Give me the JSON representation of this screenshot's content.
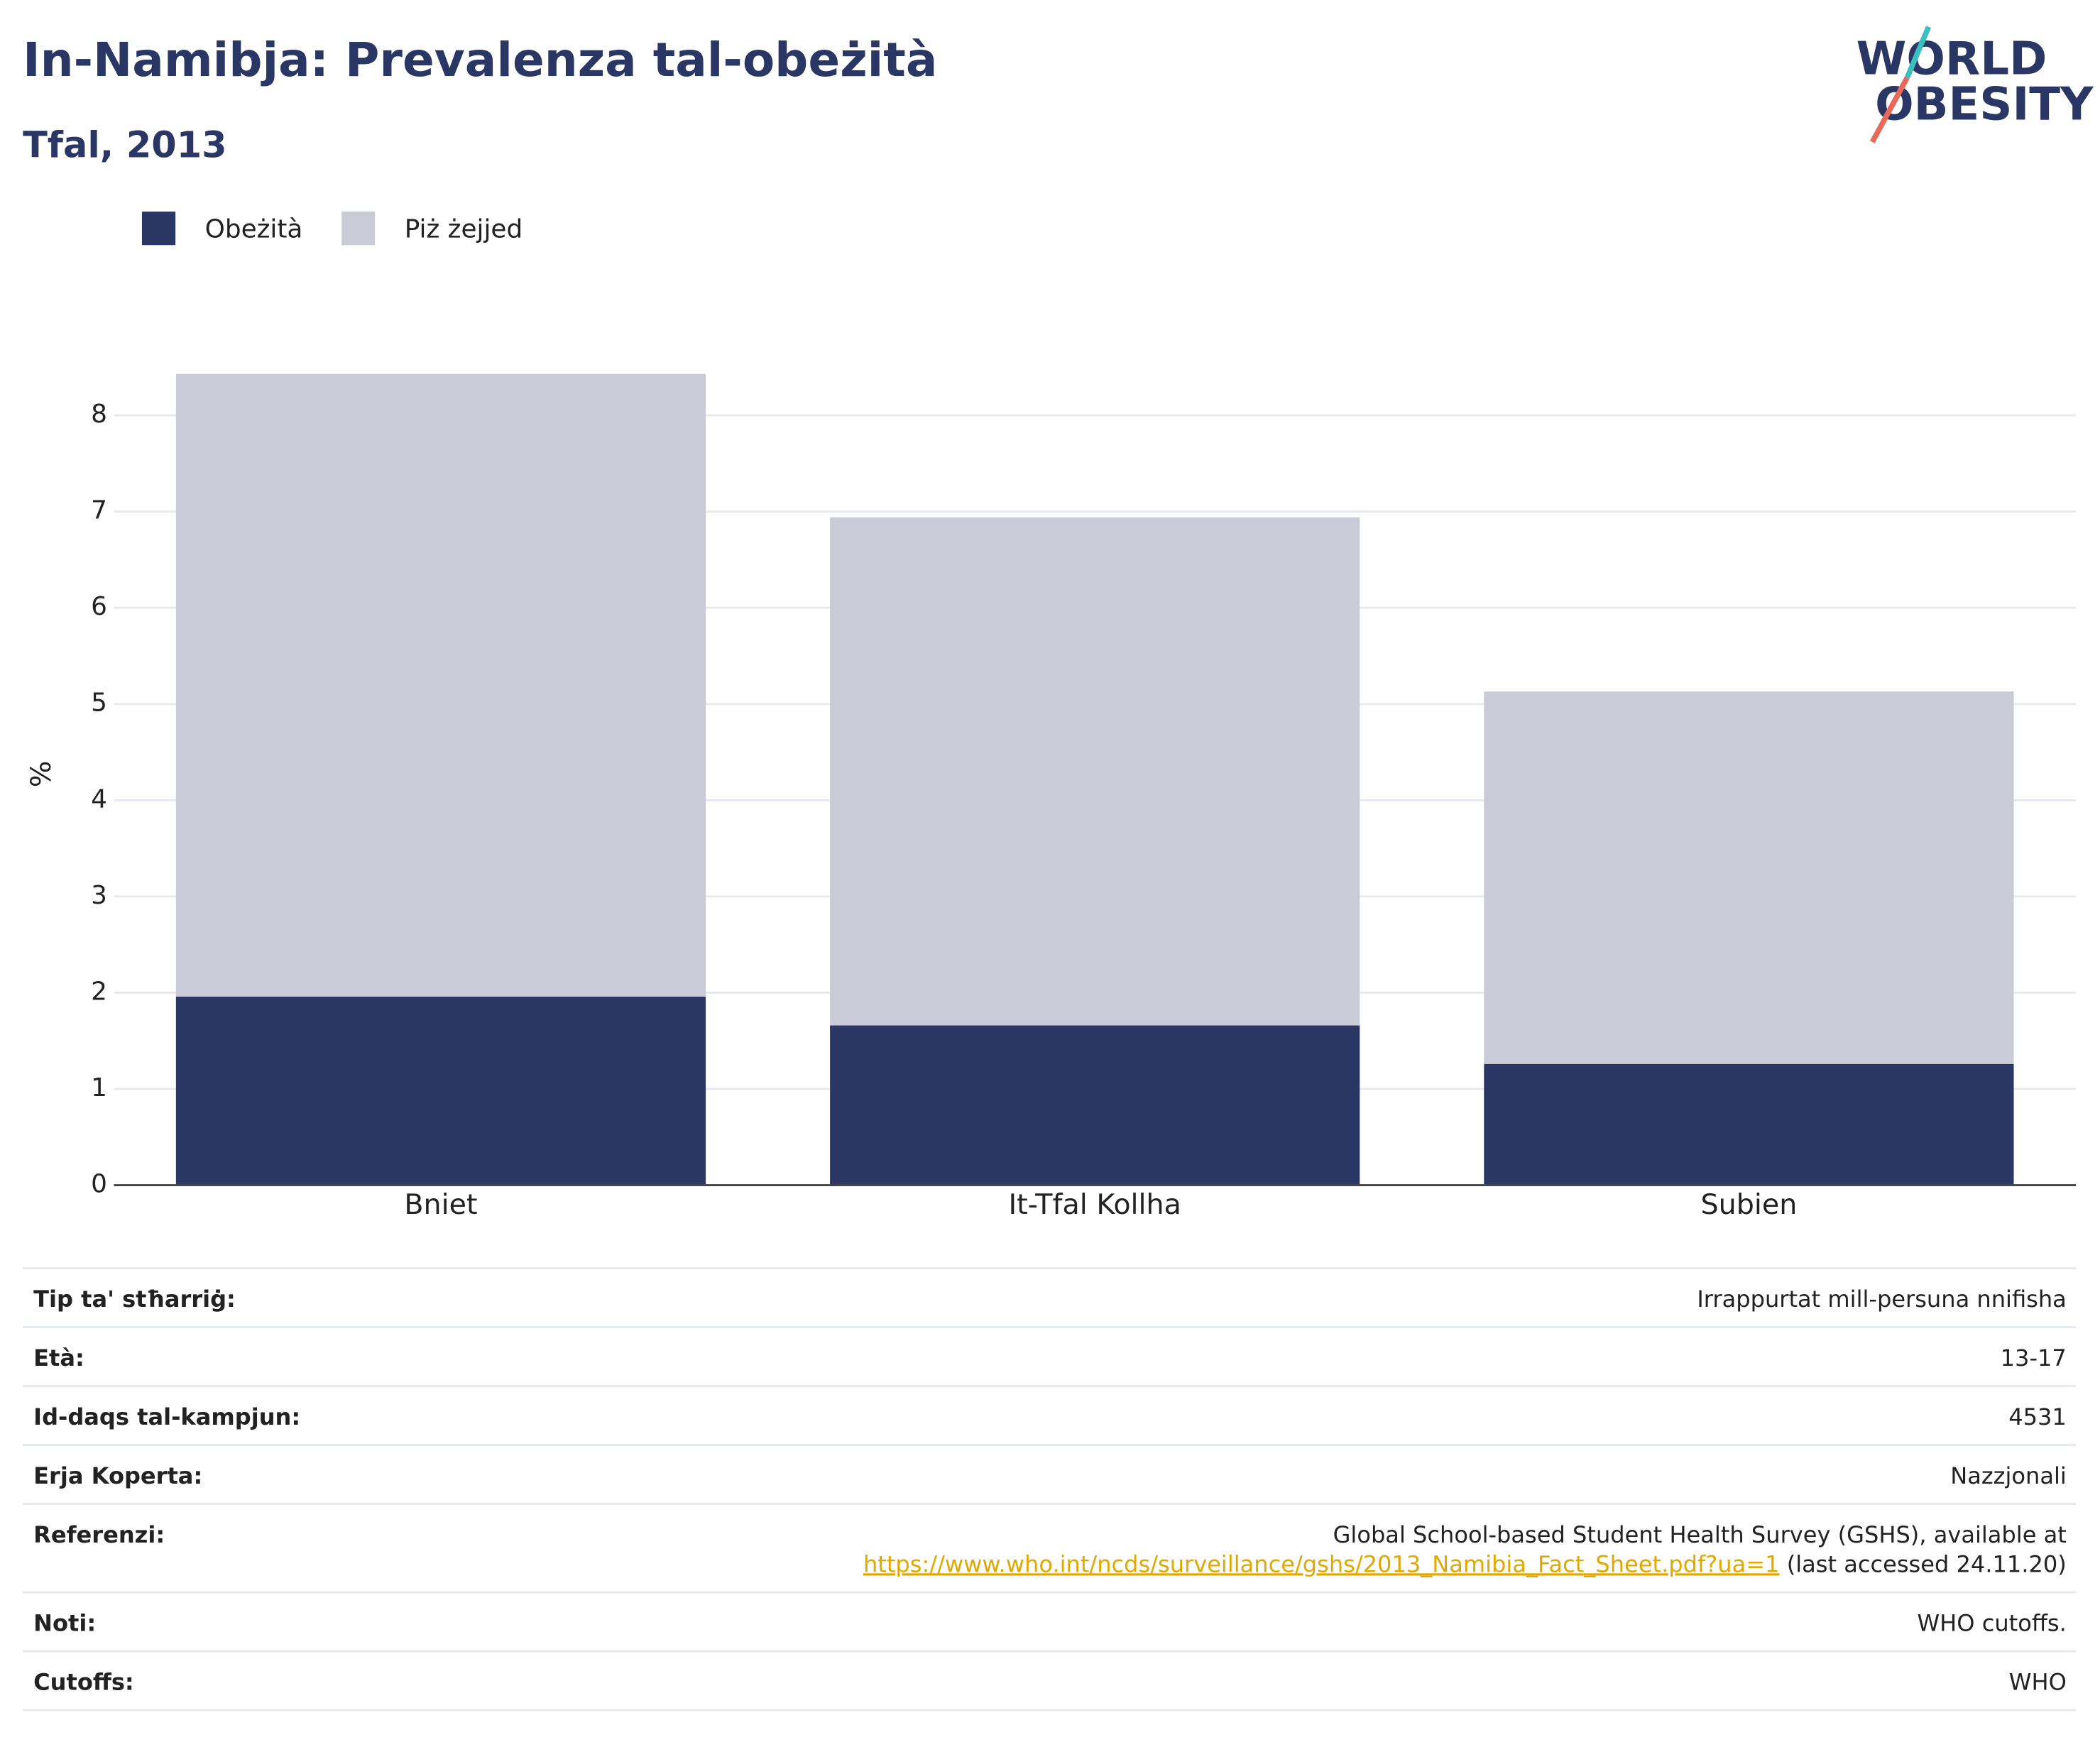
{
  "chart_data": {
    "type": "stacked_bar",
    "title": "In-Namibja: Prevalenza tal-obeżità",
    "subtitle": "Tfal, 2013",
    "y_label": "%",
    "categories": [
      "Bniet",
      "It-Tfal Kollha",
      "Subien"
    ],
    "series": [
      {
        "name": "Obeżità",
        "color": "#2a3765",
        "values": [
          1.96,
          1.66,
          1.26
        ]
      },
      {
        "name": "Piż żejjed",
        "color": "#c9cbd6",
        "values": [
          6.47,
          5.28,
          3.87
        ]
      }
    ],
    "ylim": [
      0,
      8.6
    ],
    "yticks": [
      0,
      1,
      2,
      3,
      4,
      5,
      6,
      7,
      8
    ],
    "grid": true,
    "legend": "top-left"
  },
  "logo": {
    "line1": "WORLD",
    "line2": "OBESITY"
  },
  "table": {
    "rows": [
      {
        "label": "Tip ta' stħarriġ:",
        "value": "Irrappurtat mill-persuna nnifisha"
      },
      {
        "label": "Età:",
        "value": "13-17"
      },
      {
        "label": "Id-daqs tal-kampjun:",
        "value": "4531"
      },
      {
        "label": "Erja Koperta:",
        "value": "Nazzjonali"
      },
      {
        "label": "Referenzi:",
        "value": "Global School-based Student Health Survey (GSHS), available at",
        "link": "https://www.who.int/ncds/surveillance/gshs/2013_Namibia_Fact_Sheet.pdf?ua=1",
        "suffix": " (last accessed 24.11.20)"
      },
      {
        "label": "Noti:",
        "value": "WHO cutoffs."
      },
      {
        "label": "Cutoffs:",
        "value": "WHO"
      }
    ]
  }
}
